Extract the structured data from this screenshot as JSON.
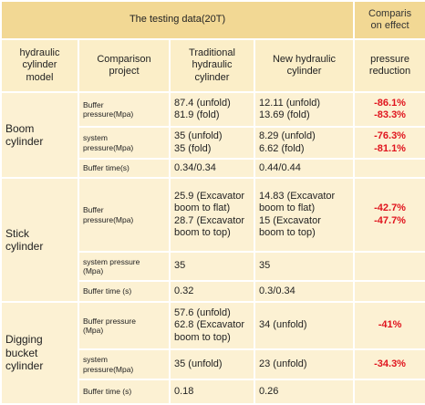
{
  "header": {
    "title": "The testing data(20T)",
    "effect": "Comparis\non effect"
  },
  "columns": [
    "hydraulic\ncylinder\nmodel",
    "Comparison\nproject",
    "Traditional\nhydraulic\ncylinder",
    "New hydraulic\ncylinder",
    "pressure\nreduction"
  ],
  "groups": [
    {
      "model": "Boom\ncylinder",
      "rows": [
        {
          "project": "Buffer\npressure(Mpa)",
          "traditional": "87.4  (unfold)\n81.9  (fold)",
          "new": "12.11  (unfold)\n13.69  (fold)",
          "reduction": "-86.1%\n-83.3%"
        },
        {
          "project": "system\npressure(Mpa)",
          "traditional": "35  (unfold)\n35  (fold)",
          "new": "8.29  (unfold)\n6.62  (fold)",
          "reduction": "-76.3%\n-81.1%"
        },
        {
          "project": "Buffer time(s)",
          "traditional": "0.34/0.34",
          "new": "0.44/0.44"
        }
      ]
    },
    {
      "model": "Stick\ncylinder",
      "rows": [
        {
          "project": "Buffer\npressure(Mpa)",
          "traditional": "25.9  (Excavator\nboom to flat)\n28.7  (Excavator\nboom to top)",
          "new": "14.83  (Excavator\nboom to flat)\n15 (Excavator\nboom to top)",
          "reduction": "-42.7%\n-47.7%"
        },
        {
          "project": "system pressure\n(Mpa)",
          "traditional": "35",
          "new": "35"
        },
        {
          "project": "Buffer time  (s)",
          "traditional": "0.32",
          "new": "0.3/0.34"
        }
      ]
    },
    {
      "model": "Digging\nbucket\ncylinder",
      "rows": [
        {
          "project": "Buffer pressure\n(Mpa)",
          "traditional": "57.6  (unfold)\n62.8  (Excavator\nboom to top)",
          "new": "34  (unfold)",
          "reduction": "-41%"
        },
        {
          "project": "system\npressure(Mpa)",
          "traditional": "35  (unfold)",
          "new": "23  (unfold)",
          "reduction": "-34.3%"
        },
        {
          "project": "Buffer time  (s)",
          "traditional": "0.18",
          "new": "0.26"
        }
      ]
    }
  ]
}
